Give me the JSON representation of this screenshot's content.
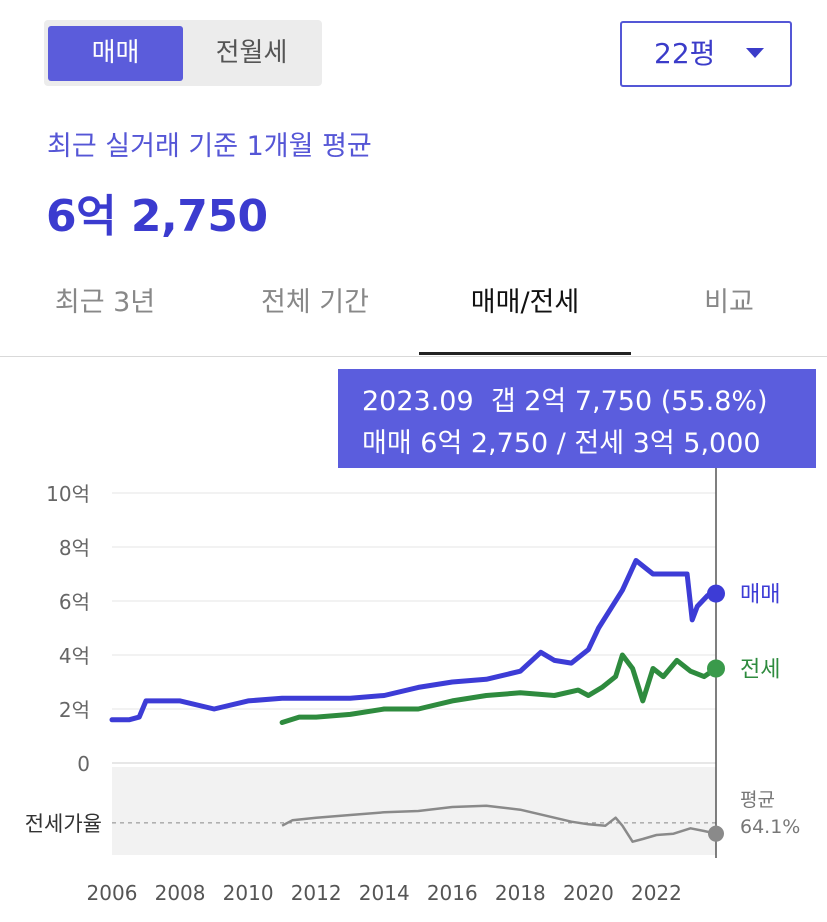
{
  "trade_tabs": {
    "active": "매매",
    "inactive": "전월세"
  },
  "area_select": {
    "value": "22평"
  },
  "summary": {
    "label": "최근 실거래 기준 1개월 평균",
    "price": "6억 2,750"
  },
  "period_tabs": [
    {
      "label": "최근 3년",
      "active": false
    },
    {
      "label": "전체 기간",
      "active": false
    },
    {
      "label": "매매/전세",
      "active": true
    },
    {
      "label": "비교",
      "active": false
    }
  ],
  "tooltip": {
    "line1": "2023.09  갭 2억 7,750 (55.8%)",
    "line2": "매매 6억 2,750 / 전세 3억 5,000"
  },
  "colors": {
    "accent": "#5b5ddd",
    "sale": "#3d3cd6",
    "jeonse": "#2e8b3e",
    "ratio": "#8a8a8a"
  },
  "chart_data": {
    "type": "line",
    "y_ticks": [
      "10억",
      "8억",
      "6억",
      "4억",
      "2억",
      "0"
    ],
    "ylim": [
      0,
      10
    ],
    "yunit": "억",
    "x_ticks": [
      "2006",
      "2008",
      "2010",
      "2012",
      "2014",
      "2016",
      "2018",
      "2020",
      "2022"
    ],
    "series": [
      {
        "name": "매매",
        "x": [
          2006.0,
          2006.5,
          2006.8,
          2007.0,
          2008.0,
          2009.0,
          2010.0,
          2011.0,
          2012.0,
          2013.0,
          2014.0,
          2015.0,
          2016.0,
          2017.0,
          2018.0,
          2018.6,
          2019.0,
          2019.5,
          2020.0,
          2020.3,
          2020.6,
          2021.0,
          2021.4,
          2021.9,
          2022.5,
          2022.9,
          2023.05,
          2023.2,
          2023.5,
          2023.75
        ],
        "values": [
          1.6,
          1.6,
          1.7,
          2.3,
          2.3,
          2.0,
          2.3,
          2.4,
          2.4,
          2.4,
          2.5,
          2.8,
          3.0,
          3.1,
          3.4,
          4.1,
          3.8,
          3.7,
          4.2,
          5.0,
          5.6,
          6.4,
          7.5,
          7.0,
          7.0,
          7.0,
          5.3,
          5.8,
          6.2,
          6.275
        ]
      },
      {
        "name": "전세",
        "x": [
          2011.0,
          2011.5,
          2012.0,
          2013.0,
          2014.0,
          2015.0,
          2016.0,
          2017.0,
          2018.0,
          2019.0,
          2019.7,
          2020.0,
          2020.4,
          2020.8,
          2021.0,
          2021.3,
          2021.6,
          2021.9,
          2022.2,
          2022.6,
          2023.0,
          2023.4,
          2023.75
        ],
        "values": [
          1.5,
          1.7,
          1.7,
          1.8,
          2.0,
          2.0,
          2.3,
          2.5,
          2.6,
          2.5,
          2.7,
          2.5,
          2.8,
          3.2,
          4.0,
          3.5,
          2.3,
          3.5,
          3.2,
          3.8,
          3.4,
          3.2,
          3.5
        ]
      }
    ],
    "ratio": {
      "name": "전세가율",
      "avg_label": "평균",
      "avg_value": "64.1%",
      "x": [
        2011.0,
        2011.3,
        2012.0,
        2013.0,
        2014.0,
        2015.0,
        2016.0,
        2017.0,
        2018.0,
        2019.0,
        2019.5,
        2020.0,
        2020.5,
        2020.8,
        2021.0,
        2021.3,
        2021.6,
        2022.0,
        2022.5,
        2023.0,
        2023.4,
        2023.75
      ],
      "values": [
        62,
        66,
        68,
        70,
        72,
        73,
        76,
        77,
        74,
        68,
        65,
        63,
        62,
        68,
        62,
        50,
        52,
        55,
        56,
        60,
        58,
        56
      ],
      "range": [
        40,
        100
      ],
      "avg": 64.1
    },
    "marker_x": 2023.75,
    "marker_values": {
      "매매": 6.275,
      "전세": 3.5
    }
  }
}
